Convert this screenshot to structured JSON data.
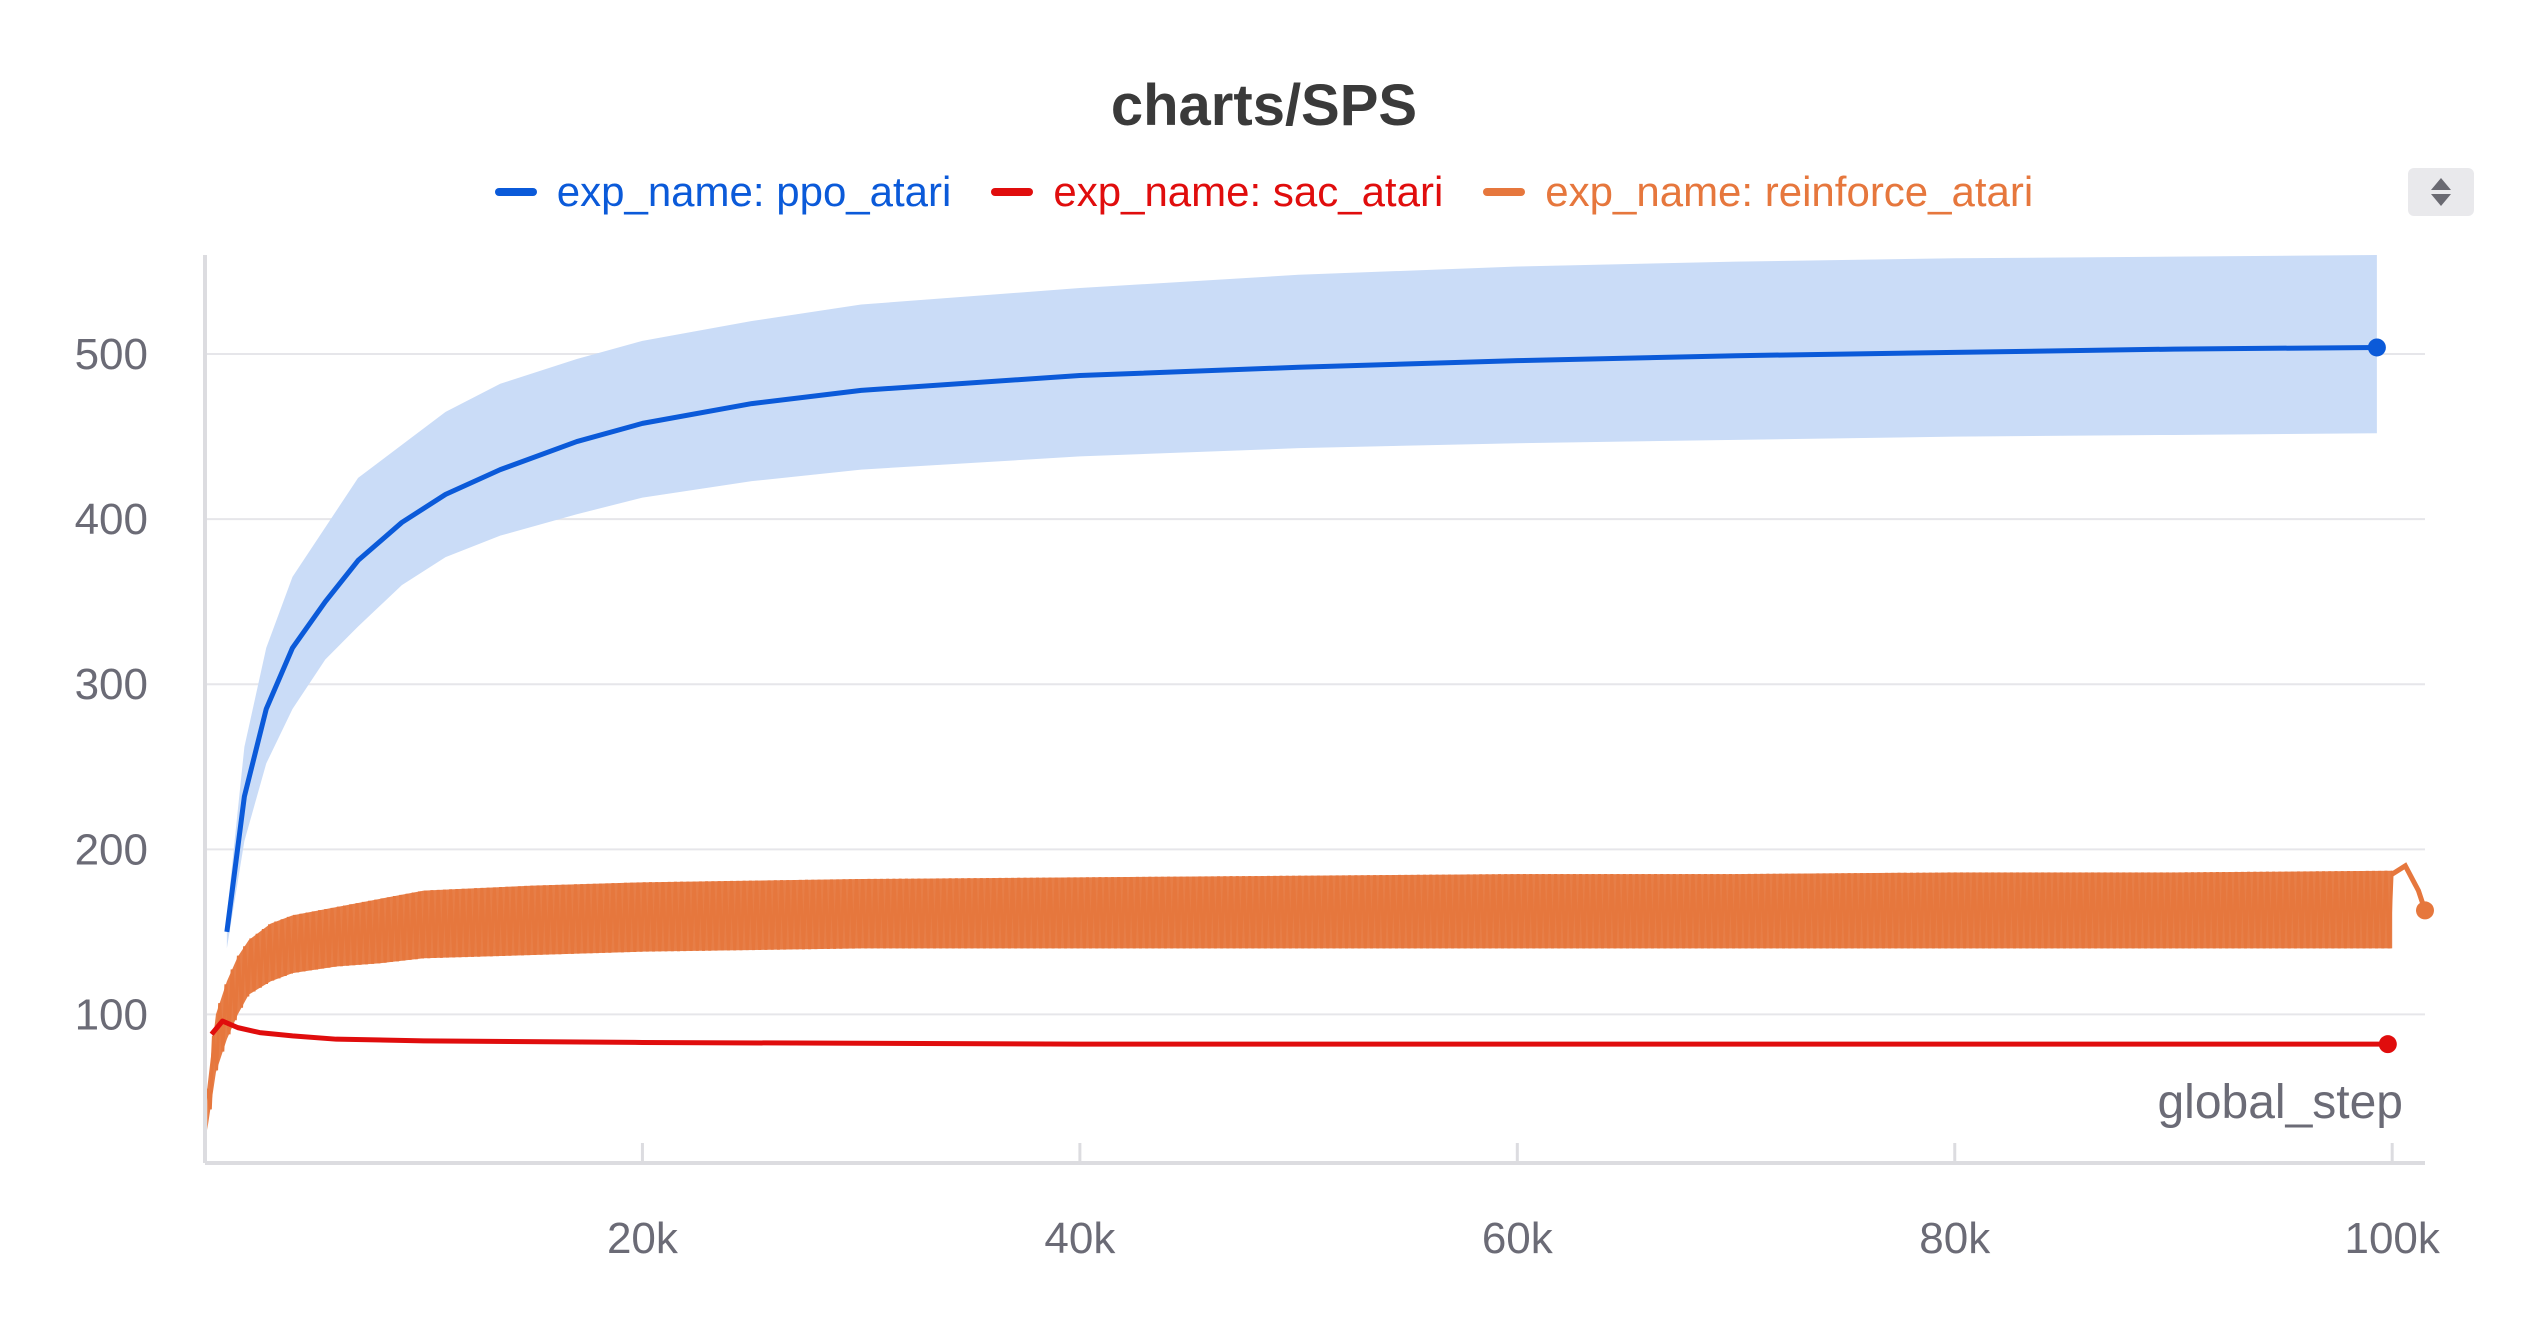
{
  "chart_data": {
    "type": "line",
    "title": "charts/SPS",
    "xlabel": "global_step",
    "ylabel": "",
    "xlim": [
      0,
      101500
    ],
    "ylim": [
      10,
      560
    ],
    "x_ticks": [
      20000,
      40000,
      60000,
      80000,
      100000
    ],
    "x_tick_labels": [
      "20k",
      "40k",
      "60k",
      "80k",
      "100k"
    ],
    "y_ticks": [
      100,
      200,
      300,
      400,
      500
    ],
    "y_tick_labels": [
      "100",
      "200",
      "300",
      "400",
      "500"
    ],
    "grid": true,
    "legend_position": "top-center",
    "series": [
      {
        "name": "exp_name: ppo_atari",
        "color": "#0b5ad9",
        "band_color": "#cadcf7",
        "x": [
          1000,
          1800,
          2800,
          4000,
          5500,
          7000,
          9000,
          11000,
          13500,
          17000,
          20000,
          25000,
          30000,
          40000,
          50000,
          60000,
          70000,
          80000,
          90000,
          99300
        ],
        "y": [
          150,
          232,
          285,
          322,
          350,
          375,
          398,
          415,
          430,
          447,
          458,
          470,
          478,
          487,
          492,
          496,
          499,
          501,
          503,
          504
        ],
        "band_lower": [
          140,
          205,
          252,
          285,
          315,
          335,
          360,
          377,
          390,
          403,
          413,
          423,
          430,
          438,
          443,
          446,
          448,
          450,
          451,
          452
        ],
        "band_upper": [
          160,
          262,
          322,
          365,
          395,
          425,
          445,
          465,
          482,
          497,
          508,
          520,
          530,
          540,
          548,
          553,
          556,
          558,
          559,
          560
        ]
      },
      {
        "name": "exp_name: sac_atari",
        "color": "#e00d0d",
        "x": [
          300,
          800,
          1500,
          2500,
          4000,
          6000,
          10000,
          20000,
          40000,
          70000,
          99800
        ],
        "y": [
          88,
          96,
          92,
          89,
          87,
          85,
          84,
          83,
          82,
          82,
          82
        ]
      },
      {
        "name": "exp_name: reinforce_atari",
        "color": "#e6773d",
        "x": [
          100,
          500,
          1000,
          1500,
          2000,
          3000,
          4000,
          6000,
          8000,
          10000,
          15000,
          20000,
          30000,
          40000,
          50000,
          60000,
          70000,
          80000,
          90000,
          100000
        ],
        "y_lower": [
          30,
          65,
          85,
          100,
          112,
          120,
          125,
          129,
          131,
          134,
          136,
          138,
          140,
          140,
          140,
          140,
          140,
          140,
          140,
          140
        ],
        "y_upper": [
          55,
          100,
          120,
          135,
          145,
          155,
          160,
          165,
          170,
          175,
          178,
          180,
          182,
          183,
          184,
          185,
          185,
          186,
          186,
          187
        ],
        "tail_x": [
          100000,
          100600,
          101200,
          101500
        ],
        "tail_y": [
          185,
          190,
          175,
          163
        ]
      }
    ]
  }
}
